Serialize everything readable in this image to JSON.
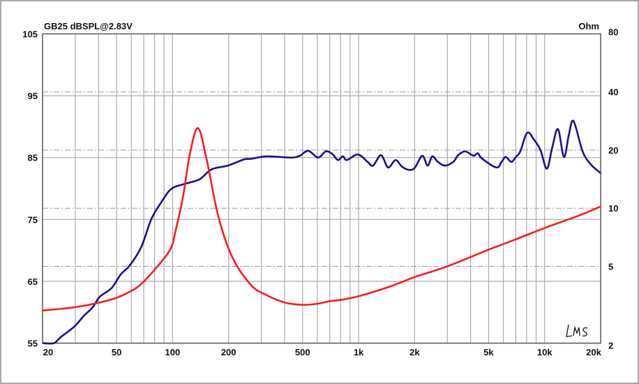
{
  "chart_data": {
    "type": "line",
    "title": "GB25 dBSPL@2.83V",
    "y2label": "Ohm",
    "x_scale": "log",
    "xlim": [
      20,
      20000
    ],
    "ylim": [
      55,
      105
    ],
    "y2lim": [
      2,
      80
    ],
    "y2_scale": "log",
    "grid": true,
    "x_ticks": [
      {
        "v": 20,
        "label": "20"
      },
      {
        "v": 50,
        "label": "50"
      },
      {
        "v": 100,
        "label": "100"
      },
      {
        "v": 200,
        "label": "200"
      },
      {
        "v": 500,
        "label": "500"
      },
      {
        "v": 1000,
        "label": "1k"
      },
      {
        "v": 2000,
        "label": "2k"
      },
      {
        "v": 5000,
        "label": "5k"
      },
      {
        "v": 10000,
        "label": "10k"
      },
      {
        "v": 20000,
        "label": "20k"
      }
    ],
    "y_ticks": [
      {
        "v": 105,
        "label": "105"
      },
      {
        "v": 95,
        "label": "95"
      },
      {
        "v": 85,
        "label": "85"
      },
      {
        "v": 75,
        "label": "75"
      },
      {
        "v": 65,
        "label": "65"
      },
      {
        "v": 55,
        "label": "55"
      }
    ],
    "y2_ticks": [
      {
        "v": 80,
        "label": "80"
      },
      {
        "v": 40,
        "label": "40"
      },
      {
        "v": 20,
        "label": "20"
      },
      {
        "v": 10,
        "label": "10"
      },
      {
        "v": 5,
        "label": "5"
      },
      {
        "v": 2,
        "label": "2"
      }
    ],
    "logo": "LMS",
    "series": [
      {
        "axis": "left",
        "color": "#1a0f8c",
        "x": [
          20,
          23,
          25.1,
          29.7,
          33.3,
          37.2,
          40.6,
          47,
          52.6,
          59,
          68,
          77,
          88.4,
          99,
          118,
          140,
          162,
          198,
          242,
          264,
          322,
          433,
          483,
          536,
          605,
          666,
          722,
          774,
          823,
          865,
          992,
          1118,
          1196,
          1320,
          1440,
          1580,
          1714,
          1880,
          2010,
          2200,
          2350,
          2490,
          2670,
          2910,
          3230,
          3430,
          3740,
          4140,
          4380,
          4580,
          5490,
          5840,
          6170,
          6620,
          7000,
          7400,
          8050,
          8770,
          9500,
          10280,
          11000,
          11800,
          12700,
          13500,
          14300,
          16000,
          17700,
          19800,
          20000
        ],
        "y": [
          55,
          55,
          56,
          57.7,
          59.4,
          60.8,
          62.5,
          63.9,
          66.1,
          67.6,
          70.6,
          75.1,
          78.1,
          80,
          80.8,
          81.5,
          83.1,
          83.7,
          84.7,
          84.8,
          85.2,
          85,
          85.3,
          86.1,
          85,
          86,
          85.6,
          84.6,
          85.2,
          84.6,
          85.5,
          84.3,
          83.7,
          85.4,
          83.4,
          84.6,
          83.5,
          83,
          83.4,
          85.3,
          83.7,
          85.2,
          84.3,
          83.7,
          84.3,
          85.4,
          86,
          85.3,
          85.7,
          84.9,
          83.4,
          84.2,
          85.1,
          84.3,
          85.1,
          86,
          89,
          87.9,
          86.2,
          83.2,
          86.7,
          89.6,
          85.1,
          88.7,
          90.9,
          86,
          83.9,
          82.6,
          82.5
        ]
      },
      {
        "axis": "right",
        "color": "#ff1a1a",
        "x": [
          20,
          30.5,
          47,
          59,
          68,
          83,
          97.5,
          104,
          114,
          124,
          137,
          153,
          176,
          209,
          264,
          320,
          400,
          500,
          600,
          700,
          800,
          1000,
          1500,
          2000,
          3000,
          5000,
          7000,
          10000,
          15000,
          20000
        ],
        "y": [
          2.95,
          3.08,
          3.37,
          3.7,
          4.06,
          5.0,
          6.15,
          7.7,
          11.6,
          19.2,
          26,
          17.6,
          9.1,
          5.6,
          4.0,
          3.55,
          3.25,
          3.16,
          3.2,
          3.3,
          3.35,
          3.5,
          3.95,
          4.4,
          5.0,
          6.1,
          6.9,
          7.9,
          9.1,
          10.2
        ]
      }
    ]
  }
}
